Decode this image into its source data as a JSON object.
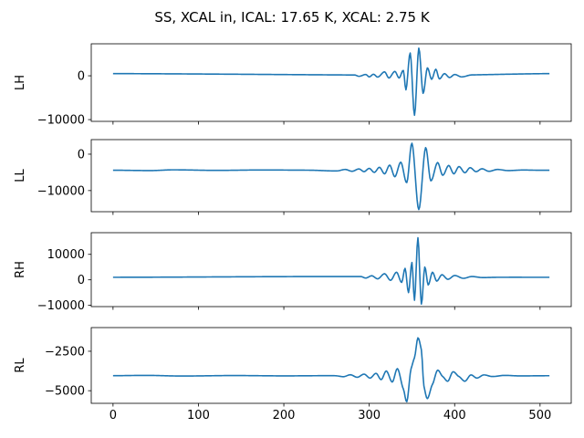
{
  "colors": {
    "line": "#1f77b4"
  },
  "figure": {
    "title": "SS, XCAL in, ICAL: 17.65 K, XCAL: 2.75 K"
  },
  "chart_data": [
    {
      "type": "line",
      "ylabel": "LH",
      "xlim": [
        -25.5,
        536.5
      ],
      "ylim": [
        -10400,
        7300
      ],
      "xticks": [
        0,
        100,
        200,
        300,
        400,
        500
      ],
      "xtick_labels": [
        "",
        "",
        "",
        "",
        "",
        ""
      ],
      "yticks": [
        0,
        -10000
      ],
      "ytick_labels": [
        "0",
        "−10000"
      ],
      "baseline": 500,
      "n": 512,
      "features": [
        [
          283,
          180
        ],
        [
          288,
          -120
        ],
        [
          296,
          300
        ],
        [
          300,
          -250
        ],
        [
          305,
          350
        ],
        [
          310,
          -300
        ],
        [
          318,
          900
        ],
        [
          323,
          -500
        ],
        [
          330,
          1000
        ],
        [
          335,
          -500
        ],
        [
          340,
          1200
        ],
        [
          343,
          -3200
        ],
        [
          348,
          5200
        ],
        [
          353,
          -9000
        ],
        [
          358,
          6300
        ],
        [
          363,
          -4000
        ],
        [
          368,
          1800
        ],
        [
          373,
          -800
        ],
        [
          378,
          1500
        ],
        [
          382,
          -700
        ],
        [
          388,
          500
        ],
        [
          394,
          -400
        ],
        [
          400,
          300
        ],
        [
          408,
          -250
        ],
        [
          420,
          200
        ]
      ]
    },
    {
      "type": "line",
      "ylabel": "LL",
      "xlim": [
        -25.5,
        536.5
      ],
      "ylim": [
        -15800,
        4000
      ],
      "xticks": [
        0,
        100,
        200,
        300,
        400,
        500
      ],
      "xtick_labels": [
        "",
        "",
        "",
        "",
        "",
        ""
      ],
      "yticks": [
        0,
        -10000
      ],
      "ytick_labels": [
        "0",
        "−10000"
      ],
      "baseline": -4400,
      "n": 512,
      "features": [
        [
          45,
          -4500
        ],
        [
          70,
          -4300
        ],
        [
          120,
          -4450
        ],
        [
          170,
          -4350
        ],
        [
          230,
          -4400
        ],
        [
          262,
          -4600
        ],
        [
          272,
          -4200
        ],
        [
          280,
          -4700
        ],
        [
          288,
          -4050
        ],
        [
          294,
          -4800
        ],
        [
          300,
          -3900
        ],
        [
          306,
          -5000
        ],
        [
          312,
          -3600
        ],
        [
          318,
          -5400
        ],
        [
          324,
          -3000
        ],
        [
          330,
          -6200
        ],
        [
          337,
          -2200
        ],
        [
          344,
          -7800
        ],
        [
          350,
          3000
        ],
        [
          358,
          -15200
        ],
        [
          366,
          1800
        ],
        [
          372,
          -7300
        ],
        [
          380,
          -2300
        ],
        [
          386,
          -5800
        ],
        [
          393,
          -3100
        ],
        [
          399,
          -5400
        ],
        [
          405,
          -3400
        ],
        [
          412,
          -5100
        ],
        [
          418,
          -3700
        ],
        [
          425,
          -4800
        ],
        [
          432,
          -4000
        ],
        [
          440,
          -4700
        ],
        [
          450,
          -4200
        ],
        [
          462,
          -4500
        ],
        [
          480,
          -4350
        ],
        [
          495,
          -4400
        ],
        [
          511,
          -4400
        ]
      ]
    },
    {
      "type": "line",
      "ylabel": "RH",
      "xlim": [
        -25.5,
        536.5
      ],
      "ylim": [
        -10500,
        18500
      ],
      "xticks": [
        0,
        100,
        200,
        300,
        400,
        500
      ],
      "xtick_labels": [
        "",
        "",
        "",
        "",
        "",
        ""
      ],
      "yticks": [
        10000,
        0,
        -10000
      ],
      "ytick_labels": [
        "10000",
        "0",
        "−10000"
      ],
      "baseline": 1000,
      "n": 512,
      "features": [
        [
          290,
          1300
        ],
        [
          296,
          700
        ],
        [
          303,
          1600
        ],
        [
          310,
          400
        ],
        [
          318,
          2400
        ],
        [
          325,
          -200
        ],
        [
          332,
          3000
        ],
        [
          338,
          -1000
        ],
        [
          342,
          4500
        ],
        [
          346,
          -5000
        ],
        [
          350,
          6800
        ],
        [
          353,
          -8000
        ],
        [
          357,
          16500
        ],
        [
          361,
          -9500
        ],
        [
          365,
          5000
        ],
        [
          369,
          -2000
        ],
        [
          374,
          3000
        ],
        [
          379,
          -500
        ],
        [
          385,
          2000
        ],
        [
          392,
          200
        ],
        [
          400,
          1700
        ],
        [
          410,
          600
        ],
        [
          420,
          1300
        ],
        [
          432,
          900
        ],
        [
          450,
          1000
        ]
      ]
    },
    {
      "type": "line",
      "ylabel": "RL",
      "xlim": [
        -25.5,
        536.5
      ],
      "ylim": [
        -5800,
        -1000
      ],
      "xticks": [
        0,
        100,
        200,
        300,
        400,
        500
      ],
      "xtick_labels": [
        "0",
        "100",
        "200",
        "300",
        "400",
        "500"
      ],
      "yticks": [
        -2500,
        -5000
      ],
      "ytick_labels": [
        "−2500",
        "−5000"
      ],
      "baseline": -4050,
      "n": 512,
      "features": [
        [
          40,
          -4030
        ],
        [
          80,
          -4070
        ],
        [
          140,
          -4040
        ],
        [
          200,
          -4060
        ],
        [
          260,
          -4050
        ],
        [
          270,
          -4110
        ],
        [
          278,
          -3990
        ],
        [
          286,
          -4150
        ],
        [
          294,
          -3950
        ],
        [
          301,
          -4200
        ],
        [
          308,
          -3900
        ],
        [
          314,
          -4300
        ],
        [
          320,
          -3750
        ],
        [
          327,
          -4450
        ],
        [
          333,
          -3600
        ],
        [
          340,
          -4900
        ],
        [
          344,
          -5700
        ],
        [
          349,
          -3600
        ],
        [
          353,
          -2900
        ],
        [
          357,
          -1650
        ],
        [
          361,
          -2400
        ],
        [
          364,
          -4700
        ],
        [
          368,
          -5500
        ],
        [
          374,
          -4600
        ],
        [
          380,
          -3700
        ],
        [
          386,
          -4100
        ],
        [
          392,
          -4400
        ],
        [
          398,
          -3800
        ],
        [
          405,
          -4100
        ],
        [
          412,
          -4400
        ],
        [
          419,
          -4000
        ],
        [
          426,
          -4200
        ],
        [
          434,
          -4000
        ],
        [
          444,
          -4100
        ],
        [
          458,
          -4030
        ],
        [
          475,
          -4060
        ],
        [
          511,
          -4050
        ]
      ]
    }
  ]
}
